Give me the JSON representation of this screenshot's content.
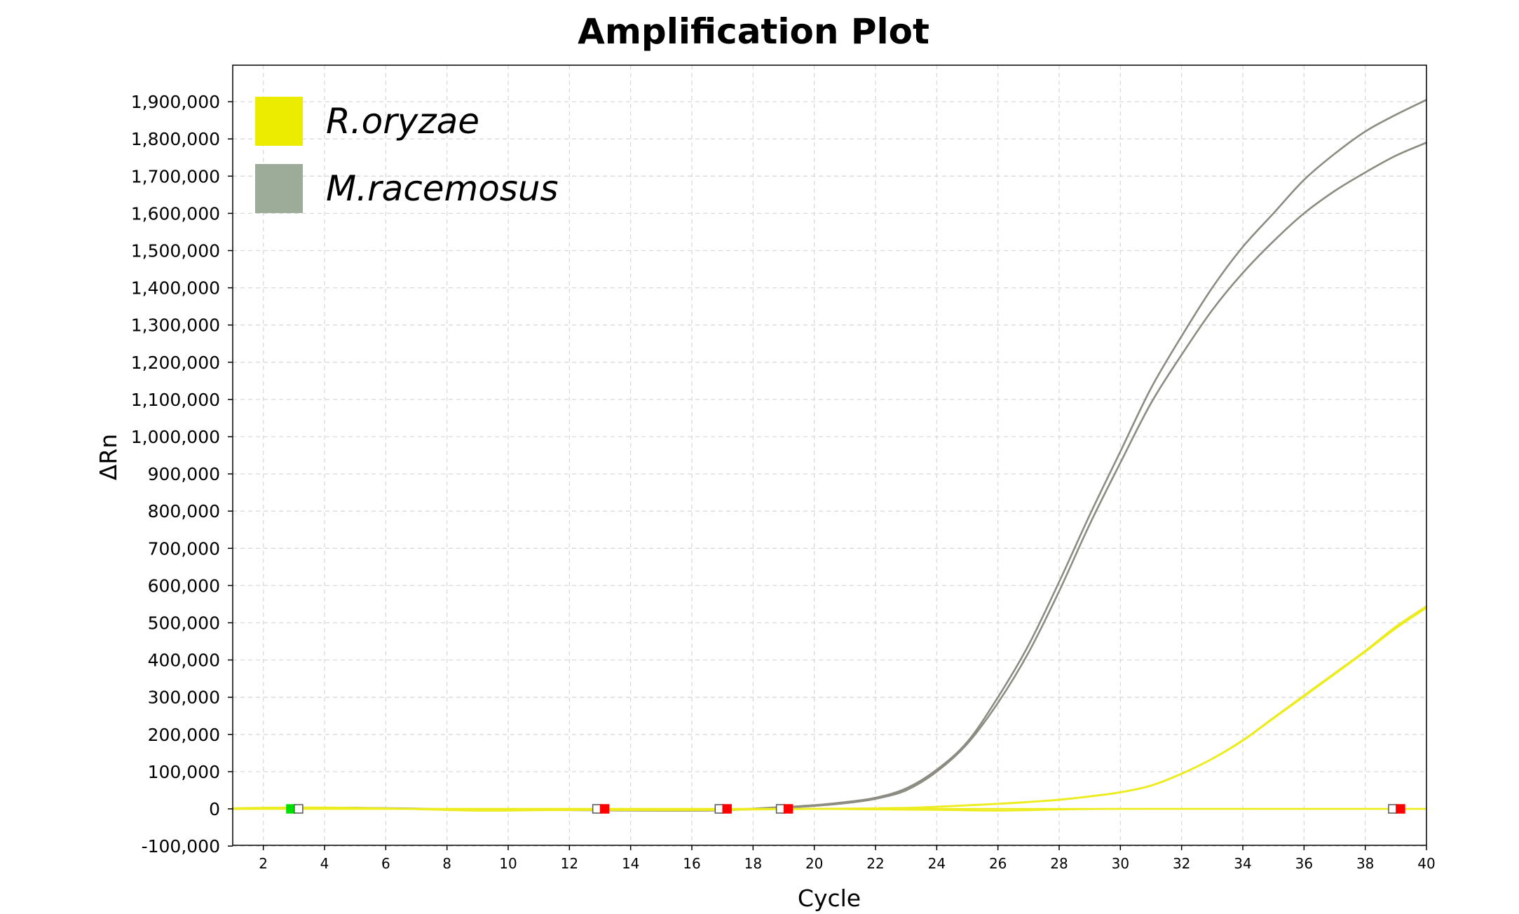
{
  "chart_data": {
    "type": "line",
    "title": "Amplification Plot",
    "xlabel": "Cycle",
    "ylabel": "ΔRn",
    "xlim": [
      1,
      40
    ],
    "ylim": [
      -100000,
      2000000
    ],
    "x_ticks": [
      2,
      4,
      6,
      8,
      10,
      12,
      14,
      16,
      18,
      20,
      22,
      24,
      26,
      28,
      30,
      32,
      34,
      36,
      38,
      40
    ],
    "y_ticks": [
      {
        "value": -100000,
        "label": "-100,000"
      },
      {
        "value": 0,
        "label": "0"
      },
      {
        "value": 100000,
        "label": "100,000"
      },
      {
        "value": 200000,
        "label": "200,000"
      },
      {
        "value": 300000,
        "label": "300,000"
      },
      {
        "value": 400000,
        "label": "400,000"
      },
      {
        "value": 500000,
        "label": "500,000"
      },
      {
        "value": 600000,
        "label": "600,000"
      },
      {
        "value": 700000,
        "label": "700,000"
      },
      {
        "value": 800000,
        "label": "800,000"
      },
      {
        "value": 900000,
        "label": "900,000"
      },
      {
        "value": 1000000,
        "label": "1,000,000"
      },
      {
        "value": 1100000,
        "label": "1,100,000"
      },
      {
        "value": 1200000,
        "label": "1,200,000"
      },
      {
        "value": 1300000,
        "label": "1,300,000"
      },
      {
        "value": 1400000,
        "label": "1,400,000"
      },
      {
        "value": 1500000,
        "label": "1,500,000"
      },
      {
        "value": 1600000,
        "label": "1,600,000"
      },
      {
        "value": 1700000,
        "label": "1,700,000"
      },
      {
        "value": 1800000,
        "label": "1,800,000"
      },
      {
        "value": 1900000,
        "label": "1,900,000"
      }
    ],
    "grid": true,
    "legend_position": "top-left",
    "legend": [
      {
        "name": "R.oryzae",
        "color": "#ecec00"
      },
      {
        "name": "M.racemosus",
        "color": "#9dab99"
      }
    ],
    "series": [
      {
        "group": "M.racemosus",
        "color": "#8c8c82",
        "x": [
          1,
          3,
          5,
          7,
          9,
          11,
          13,
          15,
          17,
          19,
          20,
          21,
          22,
          23,
          24,
          25,
          26,
          27,
          28,
          29,
          30,
          31,
          32,
          33,
          34,
          35,
          36,
          37,
          38,
          39,
          40
        ],
        "values": [
          0,
          2000,
          3000,
          1000,
          -3000,
          -2000,
          -3000,
          -4000,
          -3000,
          5000,
          10000,
          18000,
          30000,
          55000,
          105000,
          180000,
          300000,
          440000,
          610000,
          790000,
          960000,
          1130000,
          1270000,
          1400000,
          1510000,
          1600000,
          1690000,
          1760000,
          1820000,
          1865000,
          1905000
        ]
      },
      {
        "group": "M.racemosus",
        "color": "#8c8c82",
        "x": [
          1,
          3,
          5,
          7,
          9,
          11,
          13,
          15,
          17,
          19,
          20,
          21,
          22,
          23,
          24,
          25,
          26,
          27,
          28,
          29,
          30,
          31,
          32,
          33,
          34,
          35,
          36,
          37,
          38,
          39,
          40
        ],
        "values": [
          0,
          1000,
          2000,
          0,
          -4000,
          -3000,
          -4000,
          -5000,
          -4000,
          3000,
          8000,
          15000,
          27000,
          50000,
          100000,
          175000,
          285000,
          420000,
          585000,
          765000,
          930000,
          1090000,
          1220000,
          1340000,
          1440000,
          1525000,
          1600000,
          1660000,
          1710000,
          1755000,
          1790000
        ]
      },
      {
        "group": "R.oryzae",
        "color": "#ecec1e",
        "x": [
          1,
          3,
          5,
          7,
          9,
          11,
          13,
          15,
          17,
          19,
          21,
          23,
          24,
          25,
          26,
          27,
          28,
          29,
          30,
          31,
          32,
          33,
          34,
          35,
          36,
          37,
          38,
          39,
          40
        ],
        "values": [
          2000,
          4000,
          3000,
          0,
          -4000,
          -3000,
          -2000,
          -3000,
          -2000,
          0,
          1000,
          3000,
          6000,
          10000,
          14000,
          19000,
          25000,
          34000,
          45000,
          63000,
          95000,
          135000,
          185000,
          245000,
          305000,
          365000,
          425000,
          490000,
          545000
        ]
      },
      {
        "group": "R.oryzae",
        "color": "#ecec1e",
        "x": [
          1,
          3,
          5,
          7,
          9,
          11,
          13,
          15,
          17,
          19,
          21,
          23,
          24,
          25,
          26,
          27,
          28,
          29,
          30,
          31,
          32,
          33,
          34,
          35,
          36,
          37,
          38,
          39,
          40
        ],
        "values": [
          1000,
          3000,
          2000,
          -1000,
          -5000,
          -4000,
          -3000,
          -4000,
          -3000,
          -1000,
          0,
          2000,
          5000,
          9000,
          13000,
          18000,
          24000,
          33000,
          44000,
          62000,
          94000,
          134000,
          183000,
          243000,
          302000,
          362000,
          422000,
          485000,
          540000
        ]
      },
      {
        "group": "R.oryzae",
        "color": "#ecec1e",
        "x": [
          1,
          5,
          10,
          15,
          20,
          25,
          30,
          35,
          40
        ],
        "values": [
          0,
          0,
          0,
          0,
          0,
          0,
          0,
          0,
          0
        ]
      },
      {
        "group": "R.oryzae",
        "color": "#ecec1e",
        "x": [
          1,
          5,
          10,
          15,
          20,
          24,
          26,
          28,
          30,
          35,
          40
        ],
        "values": [
          0,
          0,
          0,
          0,
          0,
          -3000,
          -5000,
          -2000,
          0,
          0,
          0
        ]
      }
    ],
    "markers": [
      {
        "x": 2.9,
        "color": "#00e000"
      },
      {
        "x": 3.15,
        "color": "#ffffff"
      },
      {
        "x": 12.9,
        "color": "#ffffff"
      },
      {
        "x": 13.15,
        "color": "#ff0000"
      },
      {
        "x": 16.9,
        "color": "#ffffff"
      },
      {
        "x": 17.15,
        "color": "#ff0000"
      },
      {
        "x": 18.9,
        "color": "#ffffff"
      },
      {
        "x": 19.15,
        "color": "#ff0000"
      },
      {
        "x": 38.9,
        "color": "#ffffff"
      },
      {
        "x": 39.15,
        "color": "#ff0000"
      }
    ]
  }
}
